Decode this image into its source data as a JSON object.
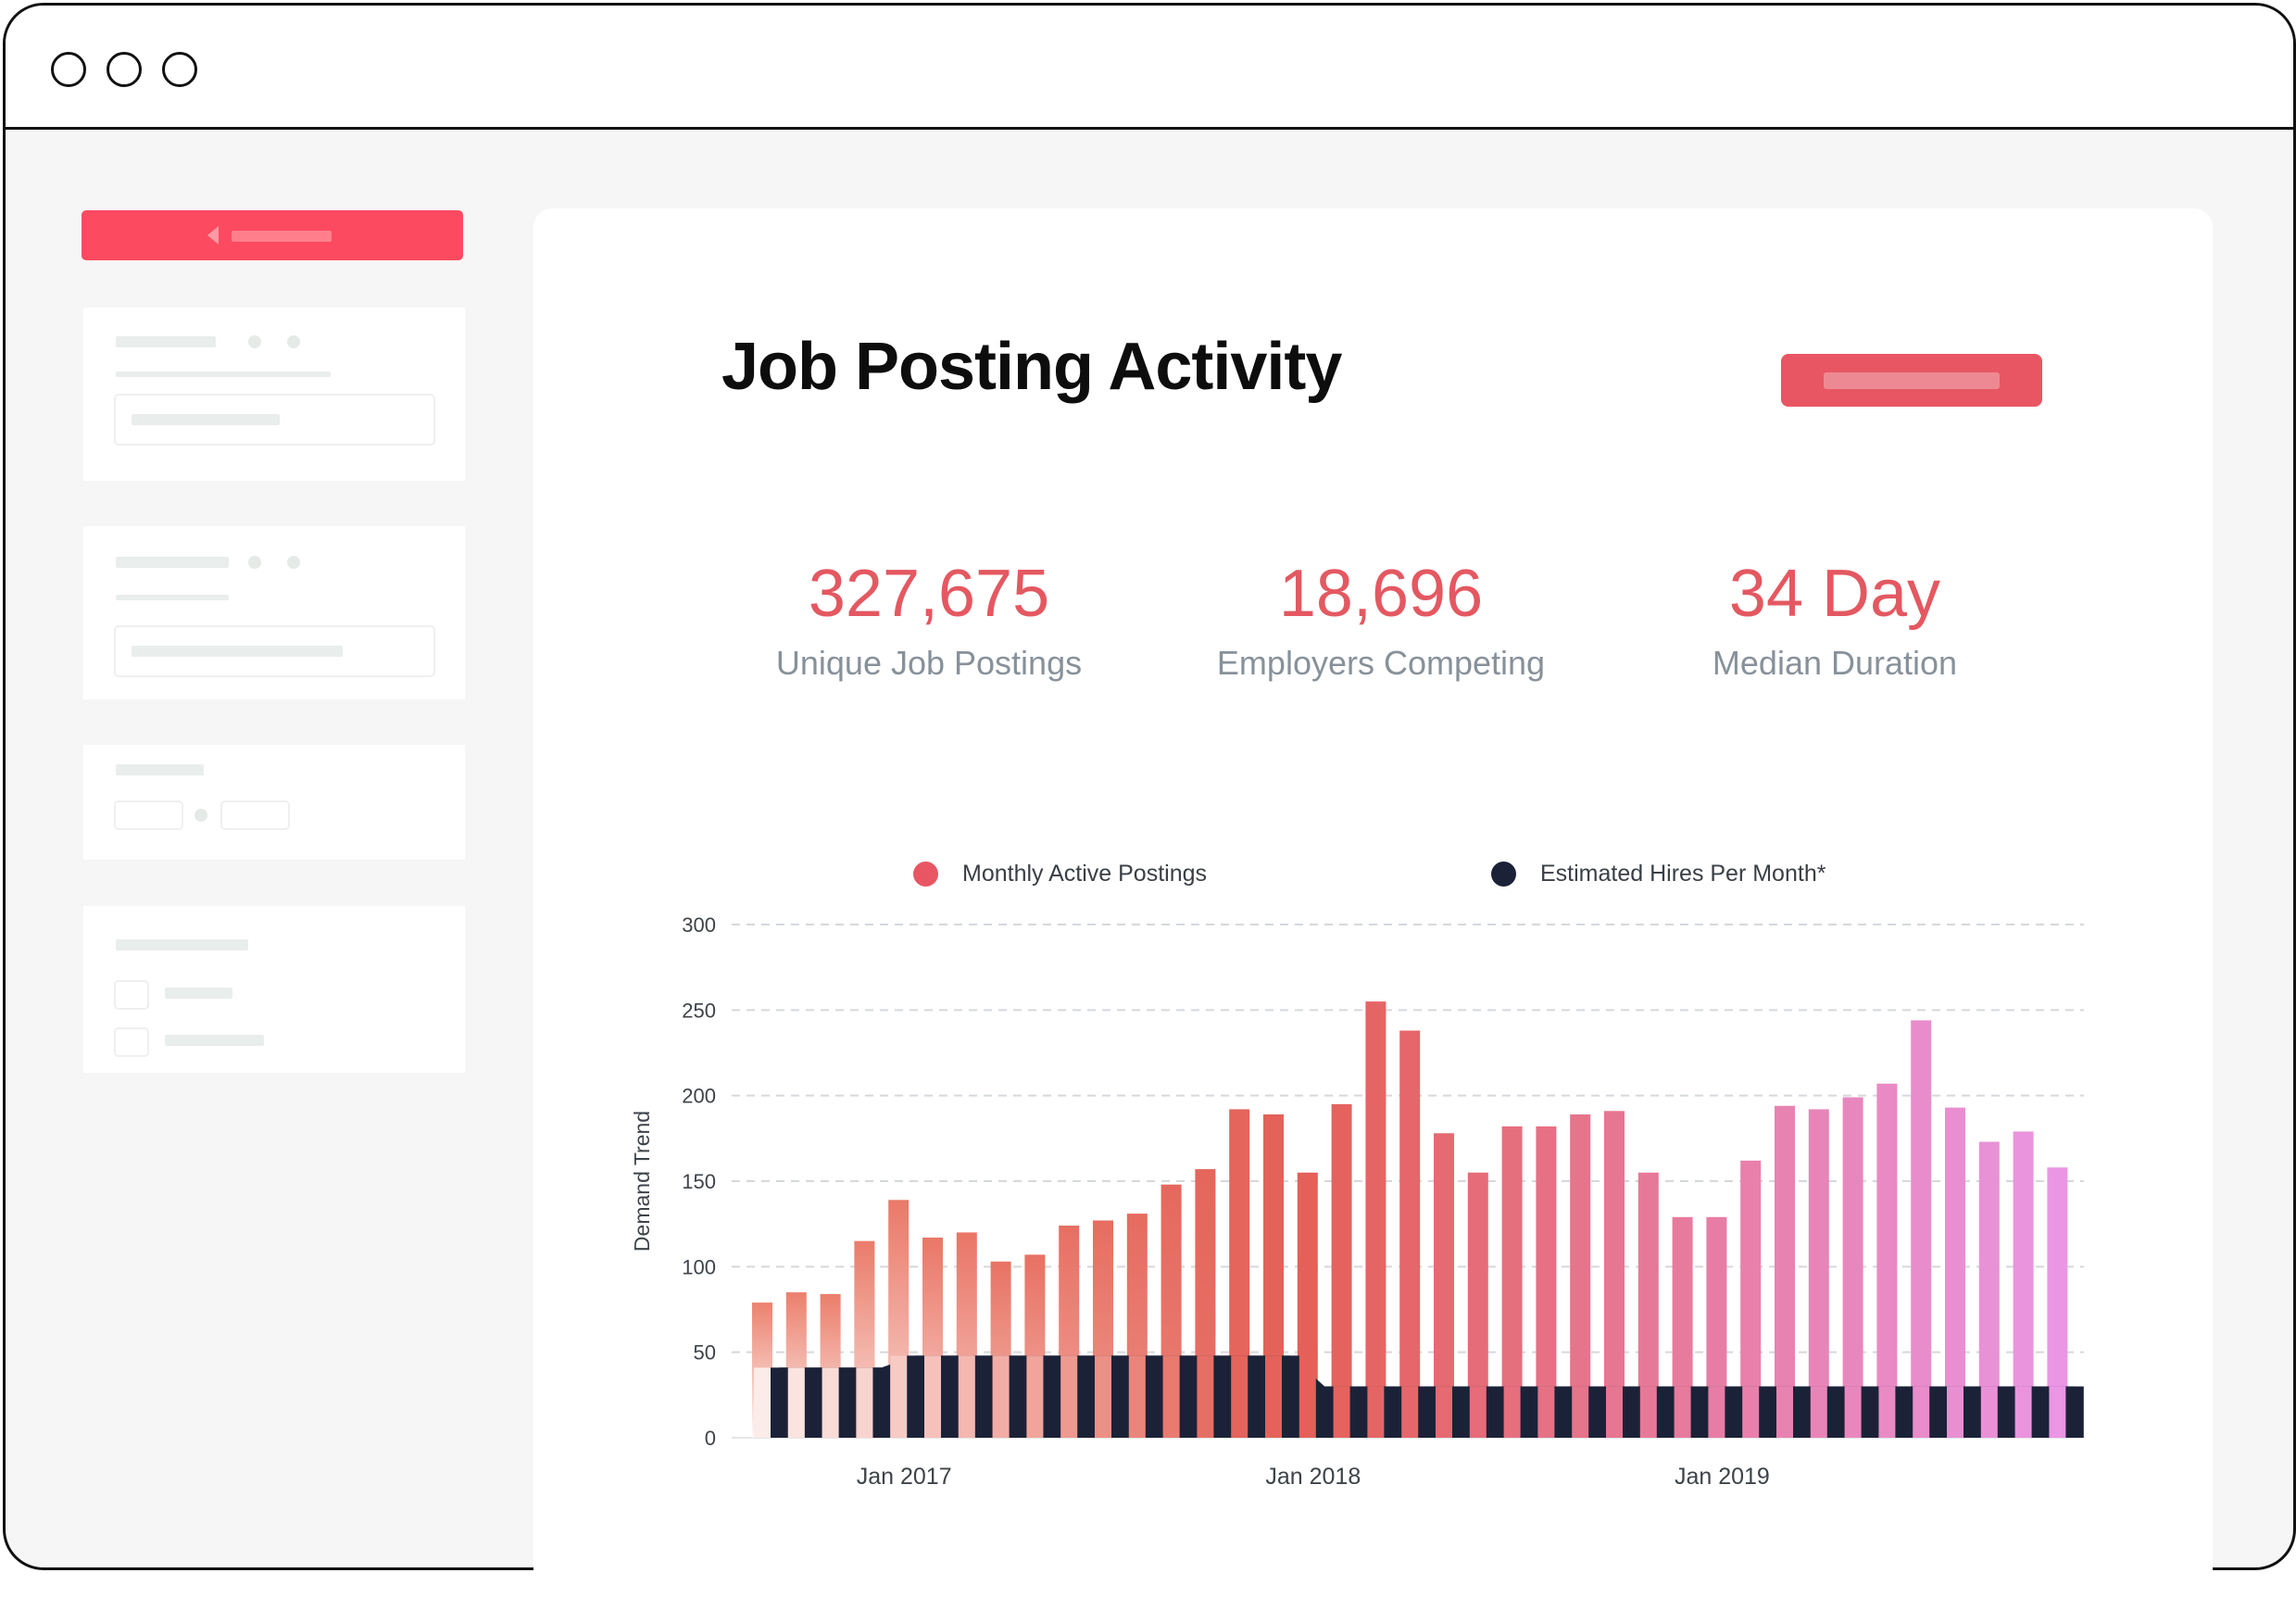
{
  "page": {
    "title": "Job Posting Activity"
  },
  "stats": [
    {
      "value": "327,675",
      "label": "Unique Job Postings"
    },
    {
      "value": "18,696",
      "label": "Employers Competing"
    },
    {
      "value": "34 Day",
      "label": "Median Duration"
    }
  ],
  "colors": {
    "accent": "#fc4a60",
    "stat_value": "#e45861",
    "hires_bar": "#1b2238"
  },
  "chart_data": {
    "type": "bar",
    "ylabel": "Demand Trend",
    "ylim": [
      0,
      300
    ],
    "yticks": [
      0,
      50,
      100,
      150,
      200,
      250,
      300
    ],
    "xtick_labels": [
      "Jan 2017",
      "Jan 2018",
      "Jan 2019"
    ],
    "xtick_index": [
      4,
      16,
      28
    ],
    "grid": true,
    "legend_position": "top",
    "series": [
      {
        "name": "Monthly Active Postings",
        "legend_color": "#e85663",
        "values": [
          79,
          85,
          84,
          115,
          139,
          117,
          120,
          103,
          107,
          124,
          127,
          131,
          148,
          157,
          192,
          189,
          155,
          195,
          255,
          238,
          178,
          155,
          182,
          182,
          189,
          191,
          155,
          129,
          129,
          162,
          194,
          192,
          199,
          207,
          244,
          193,
          173,
          179,
          158
        ]
      },
      {
        "name": "Estimated Hires Per Month*",
        "legend_color": "#1b2238",
        "values": [
          41,
          41,
          41,
          41,
          48,
          48,
          48,
          48,
          48,
          48,
          48,
          48,
          48,
          48,
          48,
          48,
          30,
          30,
          30,
          30,
          30,
          30,
          30,
          30,
          30,
          30,
          30,
          30,
          30,
          30,
          30,
          30,
          30,
          30,
          30,
          30,
          30,
          30,
          30
        ]
      }
    ]
  }
}
